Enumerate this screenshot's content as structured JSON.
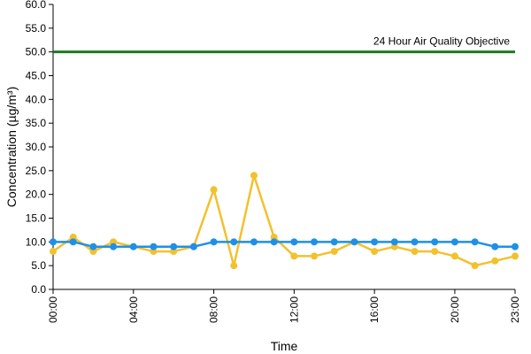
{
  "chart_data": {
    "type": "line",
    "title": "",
    "xlabel": "Time",
    "ylabel": "Concentration (µg/m³)",
    "ylim": [
      0,
      60
    ],
    "ytick_step": 5,
    "yticks": [
      "0.0",
      "5.0",
      "10.0",
      "15.0",
      "20.0",
      "25.0",
      "30.0",
      "35.0",
      "40.0",
      "45.0",
      "50.0",
      "55.0",
      "60.0"
    ],
    "x": [
      0,
      1,
      2,
      3,
      4,
      5,
      6,
      7,
      8,
      9,
      10,
      11,
      12,
      13,
      14,
      15,
      16,
      17,
      18,
      19,
      20,
      21,
      22,
      23
    ],
    "xlim": [
      0,
      23
    ],
    "xtick_positions": [
      0,
      4,
      8,
      12,
      16,
      20,
      23
    ],
    "xtick_labels": [
      "00:00",
      "04:00",
      "08:00",
      "12:00",
      "16:00",
      "20:00",
      "23:00"
    ],
    "grid": false,
    "legend": "none",
    "series": [
      {
        "color": "#f2c12e",
        "marker_color": "#f2c12e",
        "values": [
          8,
          11,
          8,
          10,
          9,
          8,
          8,
          9,
          21,
          5,
          24,
          11,
          7,
          7,
          8,
          10,
          8,
          9,
          8,
          8,
          7,
          5,
          6,
          7
        ]
      },
      {
        "color": "#1e90e8",
        "marker_color": "#1e90e8",
        "values": [
          10,
          10,
          9,
          9,
          9,
          9,
          9,
          9,
          10,
          10,
          10,
          10,
          10,
          10,
          10,
          10,
          10,
          10,
          10,
          10,
          10,
          10,
          9,
          9
        ]
      }
    ],
    "reference_line": {
      "value": 50,
      "label": "24 Hour Air Quality Objective",
      "color": "#1e7a1e"
    }
  }
}
